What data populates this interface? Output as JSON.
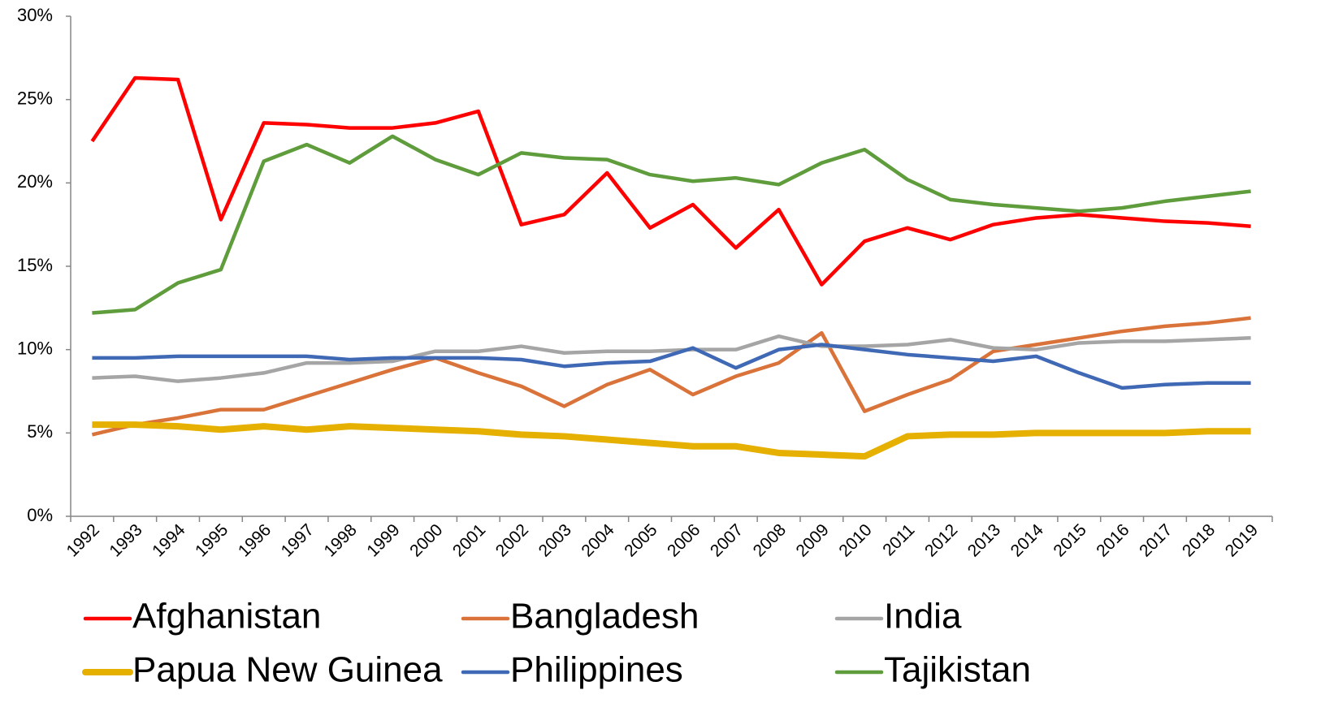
{
  "chart_data": {
    "type": "line",
    "categories": [
      "1992",
      "1993",
      "1994",
      "1995",
      "1996",
      "1997",
      "1998",
      "1999",
      "2000",
      "2001",
      "2002",
      "2003",
      "2004",
      "2005",
      "2006",
      "2007",
      "2008",
      "2009",
      "2010",
      "2011",
      "2012",
      "2013",
      "2014",
      "2015",
      "2016",
      "2017",
      "2018",
      "2019"
    ],
    "series": [
      {
        "name": "Afghanistan",
        "color": "#ff0000",
        "linewidth": 4.5,
        "values": [
          22.5,
          26.3,
          26.2,
          17.8,
          23.6,
          23.5,
          23.3,
          23.3,
          23.6,
          24.3,
          17.5,
          18.1,
          20.6,
          17.3,
          18.7,
          16.1,
          18.4,
          13.9,
          16.5,
          17.3,
          16.6,
          17.5,
          17.9,
          18.1,
          17.9,
          17.7,
          17.6,
          17.4
        ]
      },
      {
        "name": "Bangladesh",
        "color": "#d9733a",
        "linewidth": 4.5,
        "values": [
          4.9,
          5.5,
          5.9,
          6.4,
          6.4,
          7.2,
          8.0,
          8.8,
          9.5,
          8.6,
          7.8,
          6.6,
          7.9,
          8.8,
          7.3,
          8.4,
          9.2,
          11.0,
          6.3,
          7.3,
          8.2,
          9.9,
          10.3,
          10.7,
          11.1,
          11.4,
          11.6,
          11.9
        ]
      },
      {
        "name": "India",
        "color": "#a5a5a5",
        "linewidth": 4.5,
        "values": [
          8.3,
          8.4,
          8.1,
          8.3,
          8.6,
          9.2,
          9.2,
          9.3,
          9.9,
          9.9,
          10.2,
          9.8,
          9.9,
          9.9,
          10.0,
          10.0,
          10.8,
          10.2,
          10.2,
          10.3,
          10.6,
          10.1,
          10.0,
          10.4,
          10.5,
          10.5,
          10.6,
          10.7
        ]
      },
      {
        "name": "Papua New Guinea",
        "color": "#e6b000",
        "linewidth": 8,
        "values": [
          5.5,
          5.5,
          5.4,
          5.2,
          5.4,
          5.2,
          5.4,
          5.3,
          5.2,
          5.1,
          4.9,
          4.8,
          4.6,
          4.4,
          4.2,
          4.2,
          3.8,
          3.7,
          3.6,
          4.8,
          4.9,
          4.9,
          5.0,
          5.0,
          5.0,
          5.0,
          5.1,
          5.1
        ]
      },
      {
        "name": "Philippines",
        "color": "#3f68b5",
        "linewidth": 4.5,
        "values": [
          9.5,
          9.5,
          9.6,
          9.6,
          9.6,
          9.6,
          9.4,
          9.5,
          9.5,
          9.5,
          9.4,
          9.0,
          9.2,
          9.3,
          10.1,
          8.9,
          10.0,
          10.3,
          10.0,
          9.7,
          9.5,
          9.3,
          9.6,
          8.6,
          7.7,
          7.9,
          8.0,
          8.0
        ]
      },
      {
        "name": "Tajikistan",
        "color": "#5e9c3c",
        "linewidth": 4.5,
        "values": [
          12.2,
          12.4,
          14.0,
          14.8,
          21.3,
          22.3,
          21.2,
          22.8,
          21.4,
          20.5,
          21.8,
          21.5,
          21.4,
          20.5,
          20.1,
          20.3,
          19.9,
          21.2,
          22.0,
          20.2,
          19.0,
          18.7,
          18.5,
          18.3,
          18.5,
          18.9,
          19.2,
          19.5
        ]
      }
    ],
    "ylim": [
      0,
      30
    ],
    "yticks": [
      {
        "value": 0,
        "label": "0%"
      },
      {
        "value": 5,
        "label": "5%"
      },
      {
        "value": 10,
        "label": "10%"
      },
      {
        "value": 15,
        "label": "15%"
      },
      {
        "value": 20,
        "label": "20%"
      },
      {
        "value": 25,
        "label": "25%"
      },
      {
        "value": 30,
        "label": "30%"
      }
    ],
    "legend": "bottom"
  }
}
